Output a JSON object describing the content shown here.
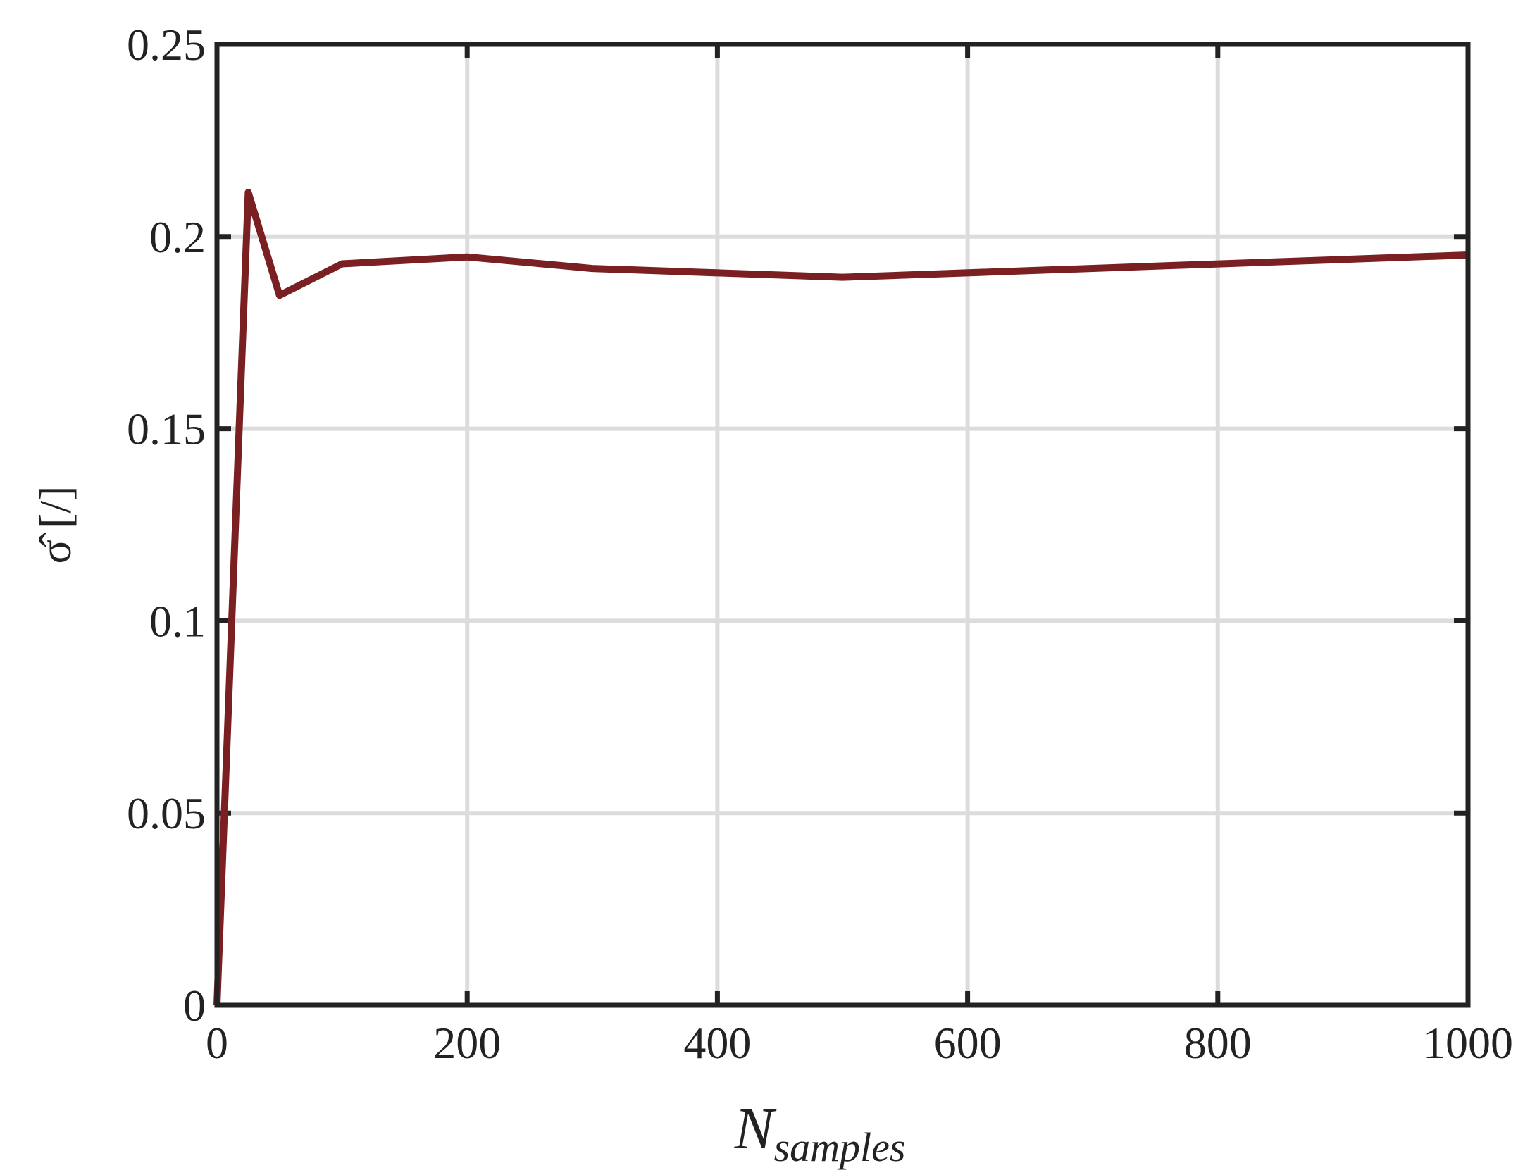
{
  "chart_data": {
    "type": "line",
    "xlabel": "N",
    "xlabel_sub": "samples",
    "ylabel": "σ̂ [/]",
    "x": [
      0,
      25,
      50,
      100,
      200,
      300,
      500,
      1000
    ],
    "series": [
      {
        "color": "#7a1f22",
        "values": [
          0,
          0.2115,
          0.1847,
          0.1929,
          0.1947,
          0.1917,
          0.1894,
          0.1952
        ]
      }
    ],
    "xlim": [
      0,
      1000
    ],
    "xticks": [
      0,
      200,
      400,
      600,
      800,
      1000
    ],
    "ylim": [
      0,
      0.25
    ],
    "yticks": [
      0,
      0.05,
      0.1,
      0.15,
      0.2,
      0.25
    ],
    "grid": true
  }
}
